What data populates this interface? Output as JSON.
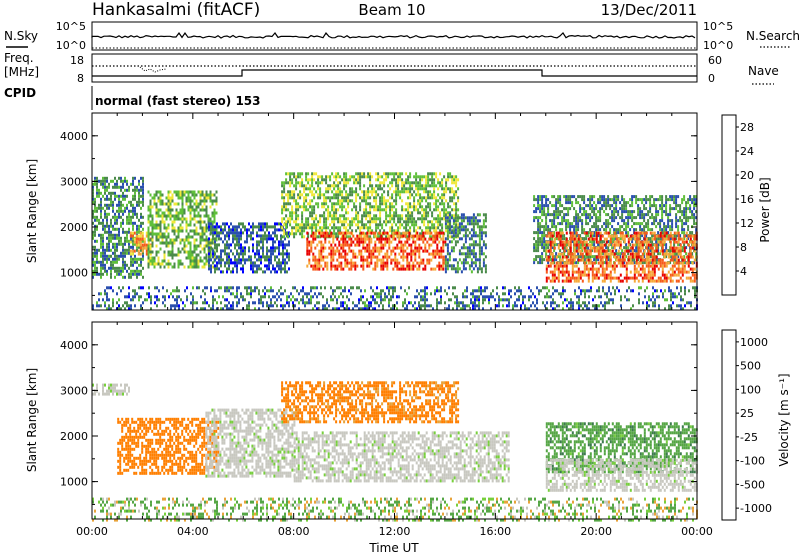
{
  "header": {
    "station": "Hankasalmi (fitACF)",
    "beam": "Beam 10",
    "date": "13/Dec/2011"
  },
  "noise_panel": {
    "left_label": "N.Sky",
    "right_label": "N.Search",
    "ytick_labels": [
      "10^5",
      "10^0"
    ]
  },
  "freq_panel": {
    "left_label_line1": "Freq.",
    "left_label_line2": "[MHz]",
    "left_ticks": [
      "18",
      "8"
    ],
    "right_label": "Nave",
    "right_ticks": [
      "60",
      "0"
    ],
    "cpid_label": "CPID"
  },
  "cpid": {
    "text": "normal (fast stereo) 153"
  },
  "colors": {
    "power_scale": [
      "#0000ff",
      "#2a4fae",
      "#4a8a4a",
      "#5fbf3a",
      "#f0e83a",
      "#f7a93a",
      "#f75a1a",
      "#e80000"
    ],
    "velocity_scale": [
      "#2d4fa5",
      "#3c7a4c",
      "#55a645",
      "#77cf3c",
      "#c8c8c0",
      "#e8a33a",
      "#ff7f00",
      "#e10000"
    ]
  },
  "chart_data": [
    {
      "type": "heatmap",
      "name": "power",
      "ylabel": "Slant Range [km]",
      "yticks": [
        1000,
        2000,
        3000,
        4000
      ],
      "ylim": [
        180,
        4500
      ],
      "xlim": [
        0,
        24
      ],
      "colorbar": {
        "label": "Power [dB]",
        "tick_values": [
          4,
          8,
          12,
          16,
          20,
          24,
          28
        ],
        "tick_labels": [
          "4",
          "8",
          "12",
          "16",
          "20",
          "24",
          "28"
        ],
        "range": [
          0,
          30
        ]
      },
      "echo_regions": [
        {
          "t0": 0.0,
          "t1": 2.0,
          "r0": 900,
          "r1": 3100,
          "level": 10
        },
        {
          "t0": 1.5,
          "t1": 2.3,
          "r0": 1400,
          "r1": 1900,
          "level": 22
        },
        {
          "t0": 2.2,
          "t1": 4.9,
          "r0": 1100,
          "r1": 2800,
          "level": 13
        },
        {
          "t0": 4.6,
          "t1": 7.8,
          "r0": 1000,
          "r1": 2100,
          "level": 7
        },
        {
          "t0": 7.5,
          "t1": 14.5,
          "r0": 1800,
          "r1": 3200,
          "level": 14
        },
        {
          "t0": 8.5,
          "t1": 14.0,
          "r0": 1100,
          "r1": 1900,
          "level": 26
        },
        {
          "t0": 14.0,
          "t1": 15.6,
          "r0": 1000,
          "r1": 2300,
          "level": 9
        },
        {
          "t0": 17.5,
          "t1": 24.0,
          "r0": 1200,
          "r1": 2700,
          "level": 10
        },
        {
          "t0": 18.0,
          "t1": 24.0,
          "r0": 800,
          "r1": 1900,
          "level": 25
        },
        {
          "t0": 0.0,
          "t1": 24.0,
          "r0": 180,
          "r1": 700,
          "level": 8
        }
      ]
    },
    {
      "type": "heatmap",
      "name": "velocity",
      "ylabel": "Slant Range [km]",
      "xlabel": "Time UT",
      "yticks": [
        1000,
        2000,
        3000,
        4000
      ],
      "ylim": [
        180,
        4500
      ],
      "xlim": [
        0,
        24
      ],
      "xticks": [
        0,
        4,
        8,
        12,
        16,
        20,
        24
      ],
      "xtick_labels": [
        "00:00",
        "04:00",
        "08:00",
        "12:00",
        "16:00",
        "20:00",
        "00:00"
      ],
      "colorbar": {
        "label": "Velocity [m s⁻¹]",
        "tick_labels": [
          "1000",
          "500",
          "100",
          "25",
          "-25",
          "-100",
          "-500",
          "-1000"
        ]
      },
      "echo_regions": [
        {
          "t0": 0.0,
          "t1": 1.5,
          "r0": 2900,
          "r1": 3150,
          "class": "gs"
        },
        {
          "t0": 1.0,
          "t1": 5.0,
          "r0": 1200,
          "r1": 2400,
          "class": -300
        },
        {
          "t0": 4.5,
          "t1": 8.0,
          "r0": 1100,
          "r1": 2600,
          "class": "gs"
        },
        {
          "t0": 7.5,
          "t1": 14.5,
          "r0": 2300,
          "r1": 3200,
          "class": -200
        },
        {
          "t0": 8.0,
          "t1": 16.5,
          "r0": 1000,
          "r1": 2100,
          "class": "gs"
        },
        {
          "t0": 18.0,
          "t1": 24.0,
          "r0": 1200,
          "r1": 2300,
          "class": 200
        },
        {
          "t0": 18.0,
          "t1": 24.0,
          "r0": 800,
          "r1": 1500,
          "class": "gs"
        },
        {
          "t0": 0.0,
          "t1": 24.0,
          "r0": 180,
          "r1": 650,
          "class": 60
        }
      ]
    }
  ]
}
